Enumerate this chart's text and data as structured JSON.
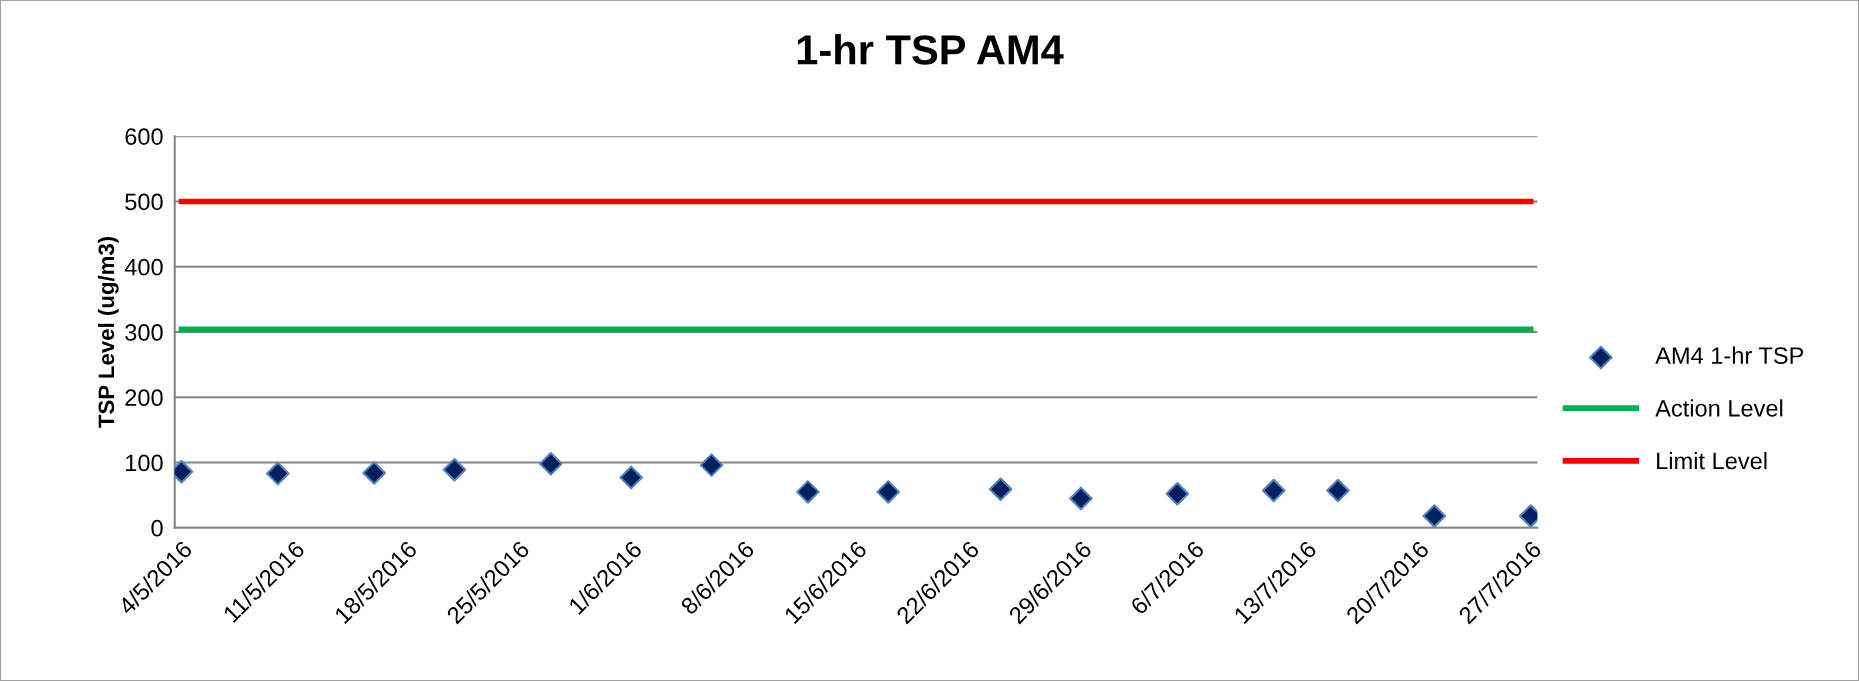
{
  "chart_data": {
    "type": "scatter",
    "title": "1-hr TSP AM4",
    "ylabel": "TSP Level (ug/m3)",
    "series": [
      {
        "name": "AM4 1-hr TSP",
        "color": "#002060",
        "marker": "diamond",
        "x": [
          "2016-05-04",
          "2016-05-10",
          "2016-05-16",
          "2016-05-21",
          "2016-05-27",
          "2016-06-01",
          "2016-06-06",
          "2016-06-12",
          "2016-06-17",
          "2016-06-24",
          "2016-06-29",
          "2016-07-05",
          "2016-07-11",
          "2016-07-15",
          "2016-07-21",
          "2016-07-27"
        ],
        "values": [
          86,
          83,
          84,
          89,
          98,
          77,
          96,
          55,
          55,
          59,
          45,
          52,
          57,
          57,
          18,
          18
        ]
      },
      {
        "name": "Action Level",
        "type": "line",
        "color": "#00b050",
        "marker": "none",
        "x": [
          "2016-05-04",
          "2016-07-27"
        ],
        "values": [
          304,
          304
        ]
      },
      {
        "name": "Limit Level",
        "type": "line",
        "color": "#ff0000",
        "marker": "none",
        "x": [
          "2016-05-04",
          "2016-07-27"
        ],
        "values": [
          500,
          500
        ]
      }
    ],
    "xlim": [
      "2016-05-03T14:00",
      "2016-07-27T10:00"
    ],
    "xticks": [
      {
        "value": "2016-05-04",
        "label": "4/5/2016"
      },
      {
        "value": "2016-05-11",
        "label": "11/5/2016"
      },
      {
        "value": "2016-05-18",
        "label": "18/5/2016"
      },
      {
        "value": "2016-05-25",
        "label": "25/5/2016"
      },
      {
        "value": "2016-06-01",
        "label": "1/6/2016"
      },
      {
        "value": "2016-06-08",
        "label": "8/6/2016"
      },
      {
        "value": "2016-06-15",
        "label": "15/6/2016"
      },
      {
        "value": "2016-06-22",
        "label": "22/6/2016"
      },
      {
        "value": "2016-06-29",
        "label": "29/6/2016"
      },
      {
        "value": "2016-07-06",
        "label": "6/7/2016"
      },
      {
        "value": "2016-07-13",
        "label": "13/7/2016"
      },
      {
        "value": "2016-07-20",
        "label": "20/7/2016"
      },
      {
        "value": "2016-07-27",
        "label": "27/7/2016"
      }
    ],
    "ylim": [
      0,
      600
    ],
    "yticks": [
      0,
      100,
      200,
      300,
      400,
      500,
      600
    ],
    "grid": "y",
    "legend": "right"
  }
}
